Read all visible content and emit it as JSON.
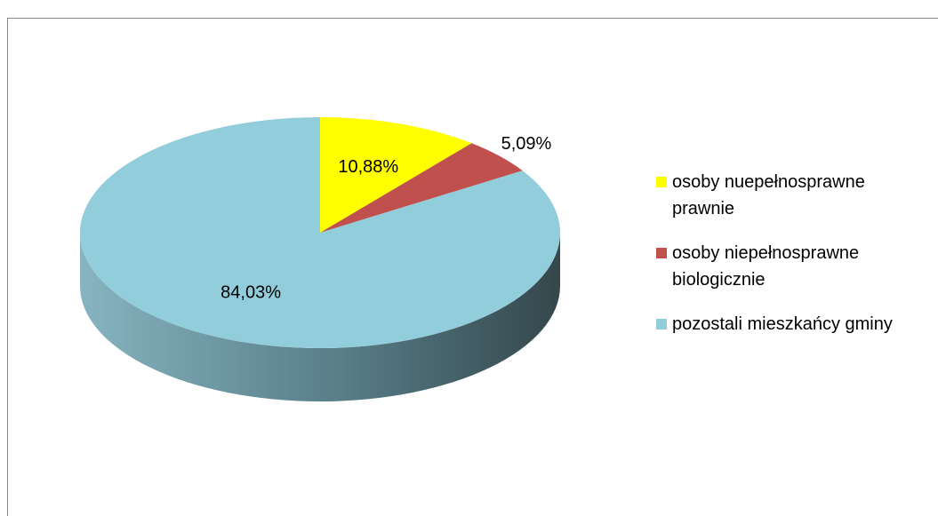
{
  "chart_data": {
    "type": "pie",
    "categories": [
      "osoby nuepełnosprawne prawnie",
      "osoby niepełnosprawne biologicznie",
      "pozostali mieszkańcy gminy"
    ],
    "values": [
      10.88,
      5.09,
      84.03
    ],
    "value_labels": [
      "10,88%",
      "5,09%",
      "84,03%"
    ],
    "colors": [
      "#ffff00",
      "#c0504d",
      "#92cddc"
    ],
    "legend": "right"
  }
}
